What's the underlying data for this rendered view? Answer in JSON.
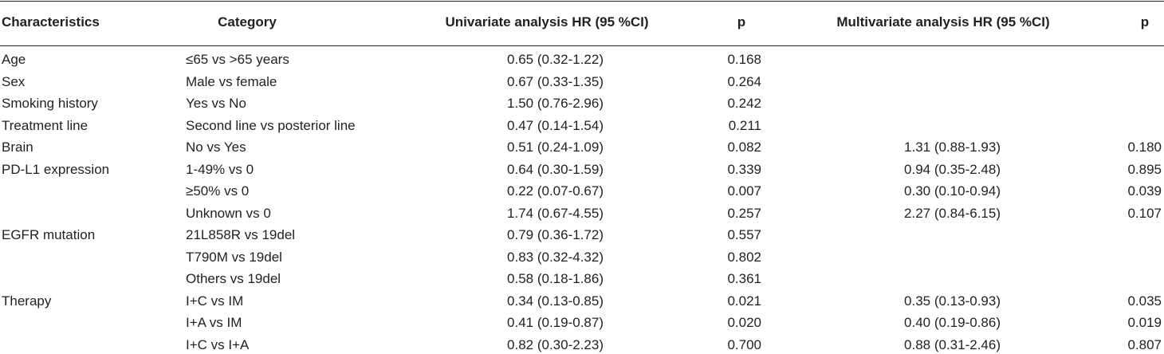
{
  "table": {
    "header": [
      "Characteristics",
      "Category",
      "Univariate analysis HR (95 %CI)",
      "p",
      "Multivariate analysis HR (95 %CI)",
      "p"
    ],
    "rows": [
      {
        "characteristic": "Age",
        "category": "≤65 vs >65 years",
        "uni_hr": "0.65 (0.32-1.22)",
        "uni_p": "0.168"
      },
      {
        "characteristic": "Sex",
        "category": "Male vs female",
        "uni_hr": "0.67 (0.33-1.35)",
        "uni_p": "0.264"
      },
      {
        "characteristic": "Smoking history",
        "category": "Yes vs No",
        "uni_hr": "1.50 (0.76-2.96)",
        "uni_p": "0.242"
      },
      {
        "characteristic": "Treatment line",
        "category": "Second line vs posterior line",
        "uni_hr": "0.47 (0.14-1.54)",
        "uni_p": "0.211"
      },
      {
        "characteristic": "Brain",
        "category": "No vs Yes",
        "uni_hr": "0.51 (0.24-1.09)",
        "uni_p": "0.082",
        "multi_hr": "1.31 (0.88-1.93)",
        "multi_p": "0.180"
      },
      {
        "characteristic": "PD-L1 expression",
        "category": "1-49% vs 0",
        "uni_hr": "0.64 (0.30-1.59)",
        "uni_p": "0.339",
        "multi_hr": "0.94 (0.35-2.48)",
        "multi_p": "0.895"
      },
      {
        "category": "≥50% vs 0",
        "uni_hr": "0.22 (0.07-0.67)",
        "uni_p": "0.007",
        "multi_hr": "0.30 (0.10-0.94)",
        "multi_p": "0.039"
      },
      {
        "category": "Unknown vs 0",
        "uni_hr": "1.74 (0.67-4.55)",
        "uni_p": "0.257",
        "multi_hr": "2.27 (0.84-6.15)",
        "multi_p": "0.107"
      },
      {
        "characteristic": "EGFR mutation",
        "category": "21L858R vs 19del",
        "uni_hr": "0.79 (0.36-1.72)",
        "uni_p": "0.557"
      },
      {
        "category": "T790M vs 19del",
        "uni_hr": "0.83 (0.32-4.32)",
        "uni_p": "0.802"
      },
      {
        "category": "Others vs 19del",
        "uni_hr": "0.58 (0.18-1.86)",
        "uni_p": "0.361"
      },
      {
        "characteristic": "Therapy",
        "category": "I+C vs IM",
        "uni_hr": "0.34 (0.13-0.85)",
        "uni_p": "0.021",
        "multi_hr": "0.35 (0.13-0.93)",
        "multi_p": "0.035"
      },
      {
        "category": "I+A vs IM",
        "uni_hr": "0.41 (0.19-0.87)",
        "uni_p": "0.020",
        "multi_hr": "0.40 (0.19-0.86)",
        "multi_p": "0.019"
      },
      {
        "category": "I+C vs I+A",
        "uni_hr": "0.82 (0.30-2.23)",
        "uni_p": "0.700",
        "multi_hr": "0.88 (0.31-2.46)",
        "multi_p": "0.807"
      }
    ]
  }
}
